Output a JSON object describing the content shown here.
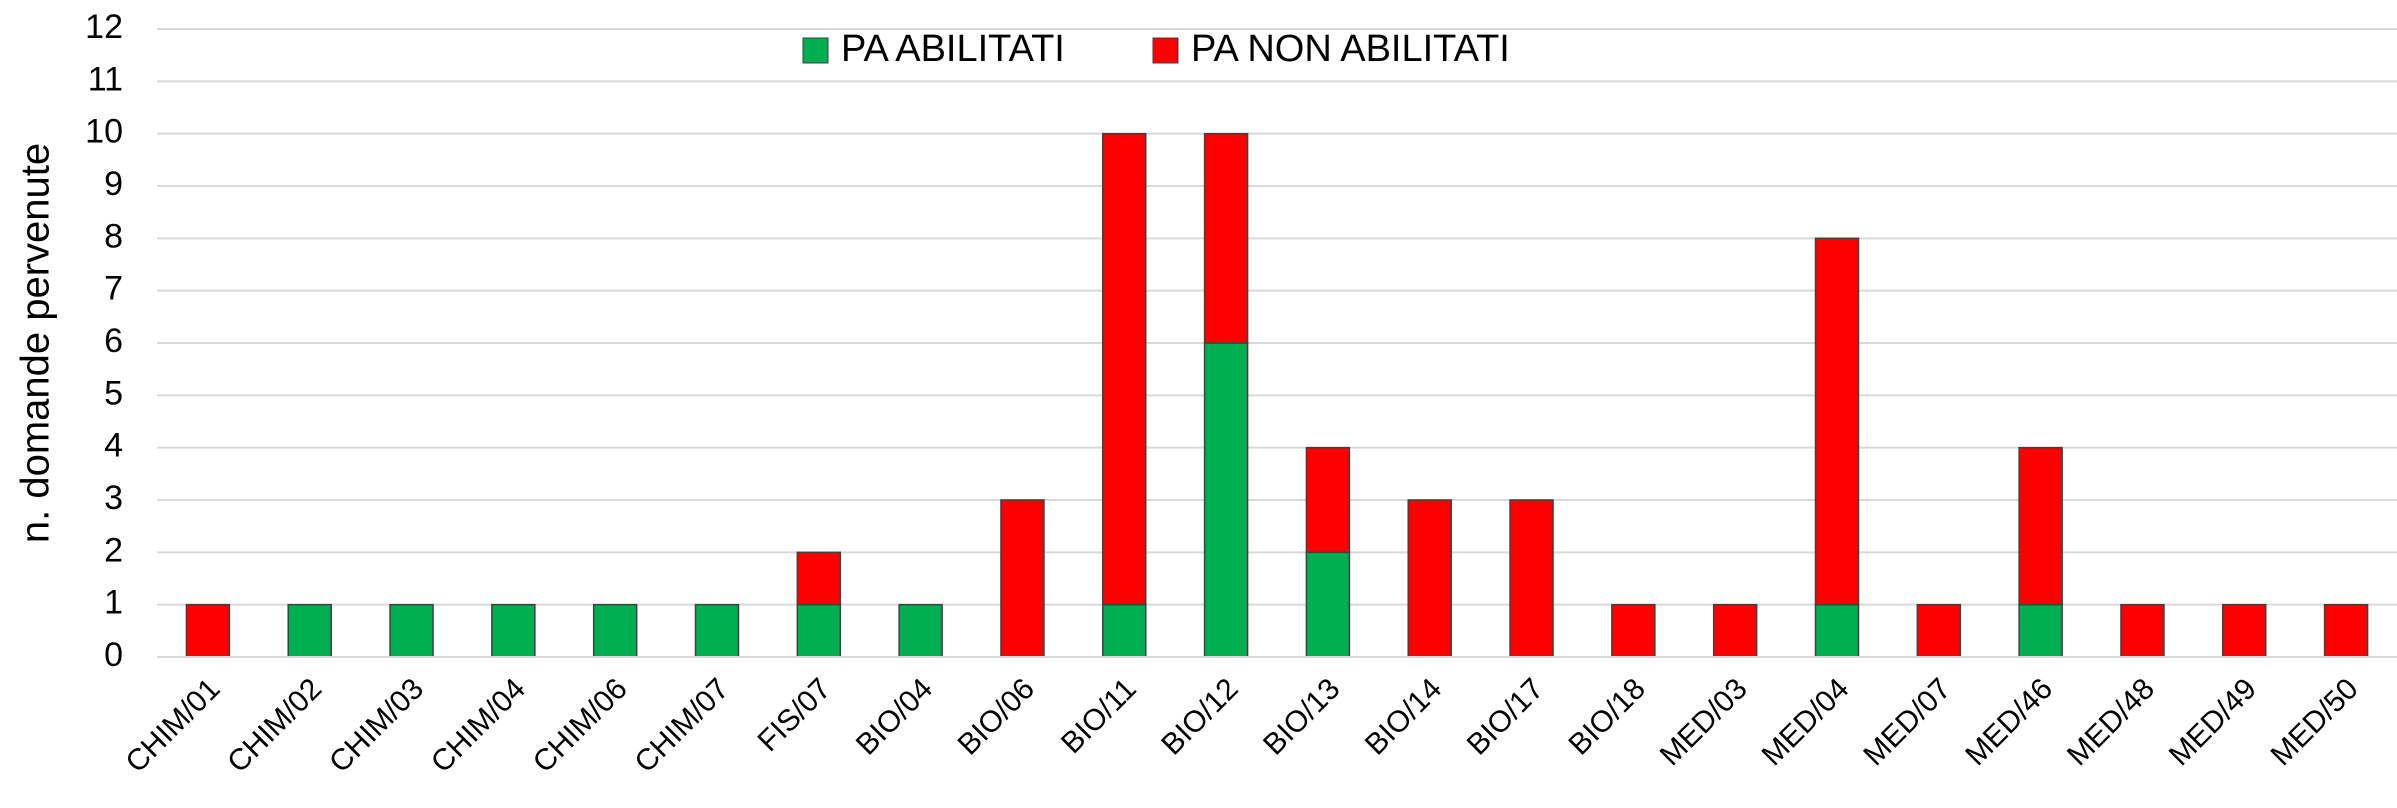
{
  "chart_data": {
    "type": "stacked_bar",
    "categories": [
      "CHIM/01",
      "CHIM/02",
      "CHIM/03",
      "CHIM/04",
      "CHIM/06",
      "CHIM/07",
      "FIS/07",
      "BIO/04",
      "BIO/06",
      "BIO/11",
      "BIO/12",
      "BIO/13",
      "BIO/14",
      "BIO/17",
      "BIO/18",
      "MED/03",
      "MED/04",
      "MED/07",
      "MED/46",
      "MED/48",
      "MED/49",
      "MED/50"
    ],
    "series": [
      {
        "name": "PA ABILITATI",
        "color": "#00b050",
        "values": [
          0,
          1,
          1,
          1,
          1,
          1,
          1,
          1,
          0,
          1,
          6,
          2,
          0,
          0,
          0,
          0,
          1,
          0,
          1,
          0,
          0,
          0
        ]
      },
      {
        "name": "PA NON ABILITATI",
        "color": "#ff0000",
        "values": [
          1,
          0,
          0,
          0,
          0,
          0,
          1,
          0,
          3,
          9,
          4,
          2,
          3,
          3,
          1,
          1,
          7,
          1,
          3,
          1,
          1,
          1
        ]
      }
    ],
    "y_label": "n. domande pervenute",
    "ylim": [
      0,
      12
    ],
    "yticks": [
      0,
      1,
      2,
      3,
      4,
      5,
      6,
      7,
      8,
      9,
      10,
      11,
      12
    ],
    "grid": true,
    "legend": "top"
  }
}
